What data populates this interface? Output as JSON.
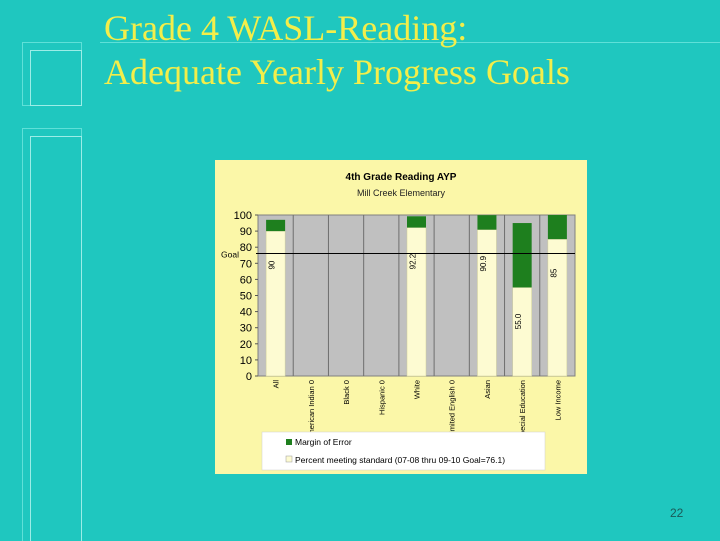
{
  "slide": {
    "title_line1": "Grade 4 WASL-Reading:",
    "title_line2": "Adequate Yearly Progress Goals",
    "page_number": "22"
  },
  "chart_data": {
    "type": "bar",
    "title": "4th Grade Reading AYP",
    "subtitle": "Mill Creek Elementary",
    "categories": [
      "All",
      "American Indian",
      "Black",
      "Hispanic",
      "White",
      "Limited English",
      "Asian",
      "Special Education",
      "Low Income"
    ],
    "category_suffix": [
      "",
      "0",
      "0",
      "0",
      "",
      "0",
      "",
      "",
      ""
    ],
    "series": [
      {
        "name": "Percent meeting standard (07-08 thru 09-10 Goal=76.1)",
        "color": "#fdfbd2",
        "values": [
          90,
          0,
          0,
          0,
          92.2,
          0,
          90.9,
          55.0,
          85
        ]
      },
      {
        "name": "Margin of Error",
        "color": "#1e7f1e",
        "values": [
          7,
          0,
          0,
          0,
          7,
          0,
          9,
          40,
          15
        ]
      }
    ],
    "value_labels": [
      "90",
      "",
      "",
      "",
      "92.2",
      "",
      "90.9",
      "55.0",
      "85"
    ],
    "goal": {
      "label": "Goal",
      "value": 76.1
    },
    "ylim": [
      0,
      100
    ],
    "yticks": [
      0,
      10,
      20,
      30,
      40,
      50,
      60,
      70,
      80,
      90,
      100
    ],
    "grid": false,
    "legend": {
      "position": "bottom"
    },
    "colors": {
      "plot_bg": "#c0c0c0",
      "chart_bg": "#fbf7a8",
      "legend_bg": "#ffffff"
    }
  }
}
